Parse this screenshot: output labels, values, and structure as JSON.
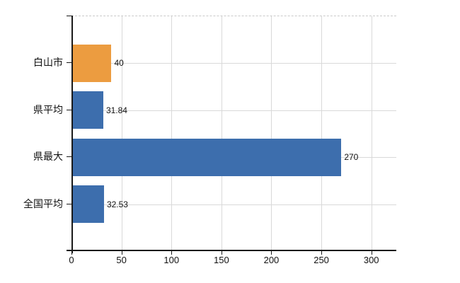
{
  "chart_data": {
    "type": "bar",
    "orientation": "horizontal",
    "title": "",
    "xlabel": "",
    "ylabel": "",
    "categories": [
      "白山市",
      "県平均",
      "県最大",
      "全国平均"
    ],
    "values": [
      40,
      31.84,
      270,
      32.53
    ],
    "value_labels": [
      "40",
      "31.84",
      "270",
      "32.53"
    ],
    "bar_colors": [
      "#EC9C40",
      "#3D6EAD",
      "#3D6EAD",
      "#3D6EAD"
    ],
    "x_tick_values": [
      0,
      50,
      100,
      150,
      200,
      250,
      300
    ],
    "x_tick_labels": [
      "0",
      "50",
      "100",
      "150",
      "200",
      "250",
      "300"
    ],
    "xlim": [
      0,
      325
    ],
    "grid": true,
    "legend": false
  },
  "colors": {
    "background": "#FFFFFF",
    "bar_orange": "#EC9C40",
    "bar_blue": "#3D6EAD",
    "gridline": "#D9D9D9",
    "axis": "#1A1A1A",
    "text": "#111111",
    "plot_top_border": "#C9C9C9"
  }
}
